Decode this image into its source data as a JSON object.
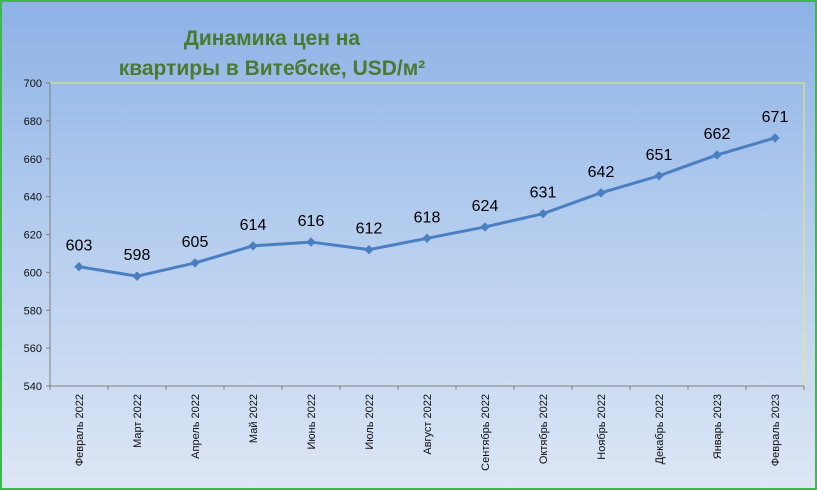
{
  "chart_data": {
    "type": "line",
    "title_lines": [
      "Динамика цен на",
      "квартиры в Витебске, USD/м²"
    ],
    "categories": [
      "Февраль 2022",
      "Март 2022",
      "Апрель 2022",
      "Май 2022",
      "Июнь 2022",
      "Июль 2022",
      "Август 2022",
      "Сентябрь 2022",
      "Октябрь 2022",
      "Ноябрь 2022",
      "Декабрь 2022",
      "Январь 2023",
      "Февраль 2023"
    ],
    "series": [
      {
        "values": [
          603,
          598,
          605,
          614,
          616,
          612,
          618,
          624,
          631,
          642,
          651,
          662,
          671
        ]
      }
    ],
    "ylim": [
      540,
      700
    ],
    "yticks": [
      540,
      560,
      580,
      600,
      620,
      640,
      660,
      680,
      700
    ],
    "grid": false,
    "legend": "none",
    "line_color": "#4a7fc1",
    "plot_border_color": "#e8ec66"
  }
}
